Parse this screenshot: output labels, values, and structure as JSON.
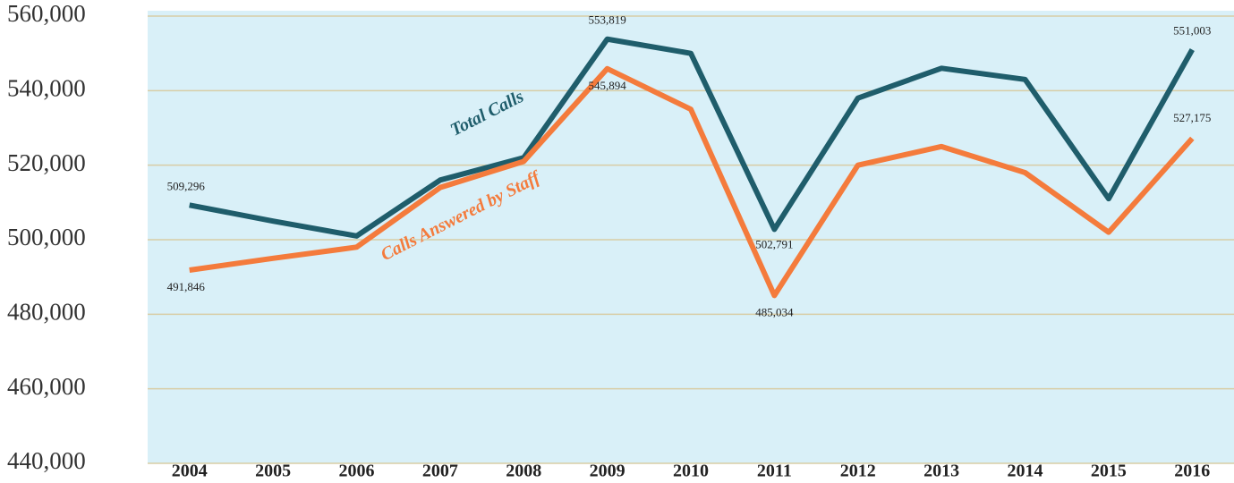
{
  "chart_data": {
    "type": "line",
    "categories": [
      "2004",
      "2005",
      "2006",
      "2007",
      "2008",
      "2009",
      "2010",
      "2011",
      "2012",
      "2013",
      "2014",
      "2015",
      "2016"
    ],
    "series": [
      {
        "name": "Total Calls",
        "color": "#1f5d6b",
        "values": [
          509296,
          505000,
          501000,
          516000,
          522000,
          553819,
          550000,
          502791,
          538000,
          546000,
          543000,
          511000,
          551003
        ],
        "value_labels": [
          "509,296",
          null,
          null,
          null,
          null,
          "553,819",
          null,
          "502,791",
          null,
          null,
          null,
          null,
          "551,003"
        ]
      },
      {
        "name": "Calls Answered by Staff",
        "color": "#f47b3c",
        "values": [
          491846,
          495000,
          498000,
          514000,
          521000,
          545894,
          535000,
          485034,
          520000,
          525000,
          518000,
          502000,
          527175
        ],
        "value_labels": [
          "491,846",
          null,
          null,
          null,
          null,
          "545,894",
          null,
          "485,034",
          null,
          null,
          null,
          null,
          "527,175"
        ]
      }
    ],
    "ylim": [
      440000,
      560000
    ],
    "yticks": [
      {
        "value": 440000,
        "label": "440,000"
      },
      {
        "value": 460000,
        "label": "460,000"
      },
      {
        "value": 480000,
        "label": "480,000"
      },
      {
        "value": 500000,
        "label": "500,000"
      },
      {
        "value": 520000,
        "label": "520,000"
      },
      {
        "value": 540000,
        "label": "540,000"
      },
      {
        "value": 560000,
        "label": "560,000"
      }
    ],
    "grid": true
  }
}
